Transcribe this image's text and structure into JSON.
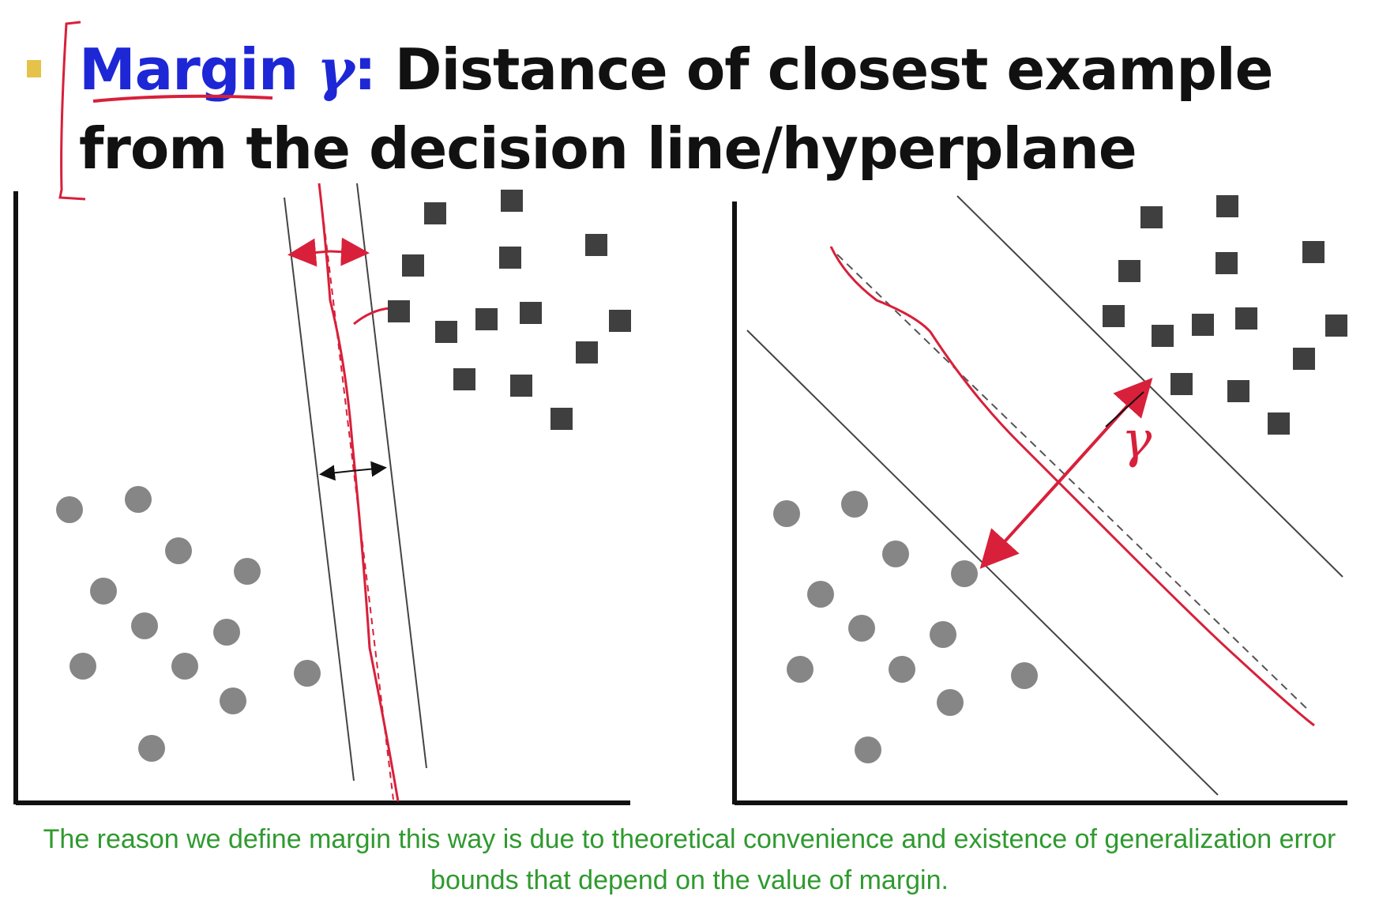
{
  "slide": {
    "title": {
      "term": "Margin",
      "symbol": "γ",
      "colon": ":",
      "definition": " Distance of closest example from the decision line/hyperplane"
    },
    "caption": "The reason we define margin this way is due to theoretical convenience and existence of generalization error bounds that depend on the value of margin.",
    "annotation_gamma": "γ"
  },
  "colors": {
    "accent_blue": "#1d27d6",
    "annotation_red": "#d8203a",
    "caption_green": "#2f9a2f",
    "point_dark": "#3f3f3f",
    "point_light": "#868686",
    "bullet_yellow": "#e6c24a"
  },
  "legend_shapes": {
    "class_a": "dark-square",
    "class_b": "gray-circle"
  }
}
